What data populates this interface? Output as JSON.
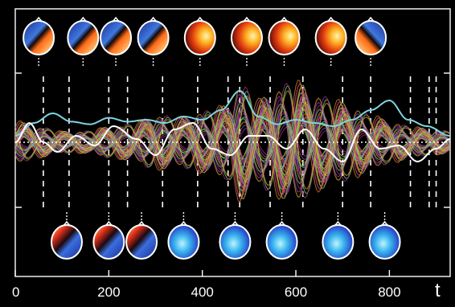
{
  "chart_data": {
    "type": "line",
    "title": "",
    "xlabel": "t",
    "ylabel": "",
    "xlim": [
      0,
      930
    ],
    "ylim": [
      -1,
      1
    ],
    "x_ticks": [
      {
        "value": 0,
        "label": "0"
      },
      {
        "value": 200,
        "label": "200"
      },
      {
        "value": 400,
        "label": "400"
      },
      {
        "value": 600,
        "label": "600"
      },
      {
        "value": 800,
        "label": "800"
      }
    ],
    "grid": false,
    "background": "#000000",
    "baseline": {
      "y": 0,
      "color": "#ffffff",
      "style": "dotted"
    },
    "marker_lines": [
      60,
      115,
      200,
      240,
      315,
      390,
      455,
      480,
      545,
      615,
      700,
      760,
      845,
      885,
      900
    ],
    "series": [
      {
        "name": "",
        "color": "#7fd4e0",
        "role": "envelope",
        "points": [
          [
            0,
            0.1
          ],
          [
            40,
            0.3
          ],
          [
            80,
            0.45
          ],
          [
            120,
            0.32
          ],
          [
            160,
            0.28
          ],
          [
            200,
            0.38
          ],
          [
            240,
            0.32
          ],
          [
            280,
            0.35
          ],
          [
            320,
            0.3
          ],
          [
            360,
            0.4
          ],
          [
            400,
            0.35
          ],
          [
            440,
            0.5
          ],
          [
            480,
            0.8
          ],
          [
            520,
            0.4
          ],
          [
            560,
            0.28
          ],
          [
            600,
            0.35
          ],
          [
            640,
            0.3
          ],
          [
            680,
            0.25
          ],
          [
            720,
            0.35
          ],
          [
            760,
            0.5
          ],
          [
            800,
            0.65
          ],
          [
            840,
            0.35
          ],
          [
            880,
            0.25
          ],
          [
            930,
            0.1
          ]
        ]
      },
      {
        "name": "",
        "color": "#ffffff",
        "role": "envelope",
        "points": [
          [
            0,
            0.0
          ],
          [
            30,
            0.3
          ],
          [
            60,
            0.0
          ],
          [
            90,
            -0.15
          ],
          [
            130,
            0.1
          ],
          [
            170,
            -0.05
          ],
          [
            210,
            0.25
          ],
          [
            260,
            0.05
          ],
          [
            300,
            -0.2
          ],
          [
            340,
            0.2
          ],
          [
            380,
            0.3
          ],
          [
            420,
            -0.1
          ],
          [
            460,
            -0.2
          ],
          [
            500,
            0.1
          ],
          [
            540,
            0.1
          ],
          [
            580,
            -0.1
          ],
          [
            620,
            0.2
          ],
          [
            660,
            -0.1
          ],
          [
            700,
            -0.3
          ],
          [
            740,
            0.2
          ],
          [
            780,
            -0.1
          ],
          [
            820,
            -0.05
          ],
          [
            860,
            -0.3
          ],
          [
            900,
            -0.1
          ],
          [
            930,
            0.05
          ]
        ]
      }
    ],
    "butterfly": {
      "description_units": "oscillation bundle of many channels, amplitude in data units",
      "envelope_points": [
        [
          0,
          0.35
        ],
        [
          50,
          0.25
        ],
        [
          100,
          0.18
        ],
        [
          150,
          0.18
        ],
        [
          200,
          0.25
        ],
        [
          250,
          0.3
        ],
        [
          300,
          0.45
        ],
        [
          350,
          0.4
        ],
        [
          400,
          0.5
        ],
        [
          450,
          0.6
        ],
        [
          480,
          0.95
        ],
        [
          520,
          0.7
        ],
        [
          560,
          0.9
        ],
        [
          600,
          1.0
        ],
        [
          640,
          0.8
        ],
        [
          680,
          0.7
        ],
        [
          720,
          0.6
        ],
        [
          760,
          0.45
        ],
        [
          800,
          0.35
        ],
        [
          850,
          0.25
        ],
        [
          900,
          0.2
        ],
        [
          930,
          0.18
        ]
      ],
      "period": 85,
      "colors": [
        "#9c2f7e",
        "#c03b8a",
        "#d8508f",
        "#8e44ad",
        "#5a3ea8",
        "#c77d2a",
        "#d6a02a",
        "#b8c62a",
        "#8fd13a",
        "#6fd27a",
        "#3fc6c6",
        "#e04a5f"
      ]
    },
    "topographic_maps": {
      "top_row_times": [
        50,
        145,
        215,
        295,
        395,
        495,
        575,
        675,
        760
      ],
      "bottom_row_times": [
        110,
        200,
        270,
        360,
        470,
        570,
        690,
        790
      ]
    }
  }
}
